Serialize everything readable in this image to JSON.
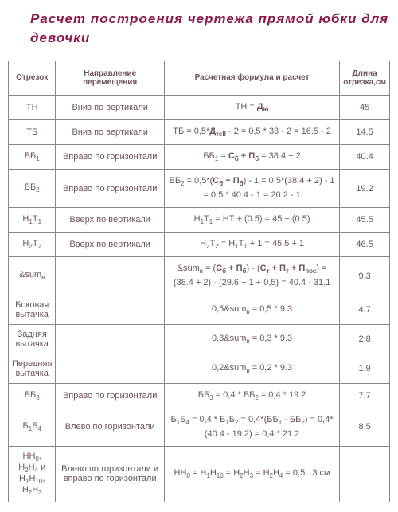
{
  "title": "Расчет построения чертежа прямой юбки для девочки",
  "headers": {
    "col1": "Отрезок",
    "col2": "Направление перемещения",
    "col3": "Расчетная формула и расчет",
    "col4": "Длина отрезка,см"
  },
  "rows": [
    {
      "segment": "ТН",
      "direction": "Вниз по вертикали",
      "formula_html": "ТН = <span class='bold'>Д<span class='sub'>ю</span></span>",
      "length": "45"
    },
    {
      "segment": "ТБ",
      "direction": "Вниз по вертикали",
      "formula_html": "ТБ = 0,5*<span class='bold'>Д<span class='sub'>тсII</span></span> - 2 = 0,5 * 33 - 2 = 16.5 - 2",
      "length": "14.5"
    },
    {
      "segment_html": "ББ<span class='sub'>1</span>",
      "direction": "Вправо по горизонтали",
      "formula_html": "ББ<span class='sub'>1</span> = <span class='bold'>С<span class='sub'>б</span> + П<span class='sub'>б</span></span> = 38.4 + 2",
      "length": "40.4"
    },
    {
      "segment_html": "ББ<span class='sub'>2</span>",
      "direction": "Вправо по горизонтали",
      "formula_html": "ББ<span class='sub'>2</span> = 0,5*(<span class='bold'>С<span class='sub'>б</span> + П<span class='sub'>б</span></span>) - 1 = 0,5*(38.4 + 2) - 1 = 0,5 * 40.4 - 1 = 20.2 - 1",
      "length": "19.2"
    },
    {
      "segment_html": "Н<span class='sub'>1</span>Т<span class='sub'>1</span>",
      "direction": "Вверх по вертикали",
      "formula_html": "Н<span class='sub'>1</span>Т<span class='sub'>1</span> = НТ + (0.5) = 45 + (0.5)",
      "length": "45.5"
    },
    {
      "segment_html": "Н<span class='sub'>2</span>Т<span class='sub'>2</span>",
      "direction": "Вверх по вертикали",
      "formula_html": "Н<span class='sub'>2</span>Т<span class='sub'>2</span> = Н<span class='sub'>1</span>Т<span class='sub'>1</span> + 1 = 45.5 + 1",
      "length": "46.5"
    },
    {
      "segment_html": "&amp;sum<span class='sub'>в</span>",
      "direction": "",
      "formula_html": "&amp;sum<span class='sub'>в</span> = (<span class='bold'>С<span class='sub'>б</span> + П<span class='sub'>б</span></span>) - (<span class='bold'>С<span class='sub'>т</span> + П<span class='sub'>т</span> + П<span class='sub'>пос</span></span>) = (38.4 + 2) - (29.6 + 1 + 0,5) = 40.4 - 31.1",
      "length": "9.3"
    },
    {
      "segment": "Боковая вытачка",
      "direction": "",
      "formula_html": "0,5&amp;sum<span class='sub'>в</span> = 0,5 * 9.3",
      "length": "4.7"
    },
    {
      "segment": "Задняя вытачка",
      "direction": "",
      "formula_html": "0,3&amp;sum<span class='sub'>в</span> = 0,3 * 9.3",
      "length": "2.8"
    },
    {
      "segment": "Передняя вытачка",
      "direction": "",
      "formula_html": "0,2&amp;sum<span class='sub'>в</span> = 0,2 * 9.3",
      "length": "1.9"
    },
    {
      "segment_html": "ББ<span class='sub'>3</span>",
      "direction": "Вправо по горизонтали",
      "formula_html": "ББ<span class='sub'>3</span> = 0,4 * ББ<span class='sub'>2</span> = 0,4 * 19.2",
      "length": "7.7"
    },
    {
      "segment_html": "Б<span class='sub'>1</span>Б<span class='sub'>4</span>",
      "direction": "Влево по горизонтали",
      "formula_html": "Б<span class='sub'>1</span>Б<span class='sub'>4</span> = 0,4 * Б<span class='sub'>1</span>Б<span class='sub'>2</span> = 0,4*(ББ<span class='sub'>1</span> - ББ<span class='sub'>2</span>) = 0,4* (40.4 - 19.2) = 0,4 * 21.2",
      "length": "8.5"
    },
    {
      "segment_html": "НН<span class='sub'>0</span>, Н<span class='sub'>2</span>Н<span class='sub'>4</span> и Н<span class='sub'>1</span>Н<span class='sub'>10</span>, Н<span class='sub'>2</span>Н<span class='sub'>3</span>",
      "direction": "Влево по горизонтали и вправо по горизонтали",
      "formula_html": "НН<span class='sub'>0</span> = Н<span class='sub'>1</span>Н<span class='sub'>10</span> = Н<span class='sub'>2</span>Н<span class='sub'>3</span> = Н<span class='sub'>2</span>Н<span class='sub'>4</span> = 0,5...3 см",
      "length": ""
    }
  ],
  "colors": {
    "title": "#8b1a4a",
    "text": "#6b5560",
    "border": "#888888",
    "background": "#ffffff"
  },
  "typography": {
    "title_size": 17,
    "body_size": 11,
    "header_size": 10,
    "font_family": "Arial"
  }
}
